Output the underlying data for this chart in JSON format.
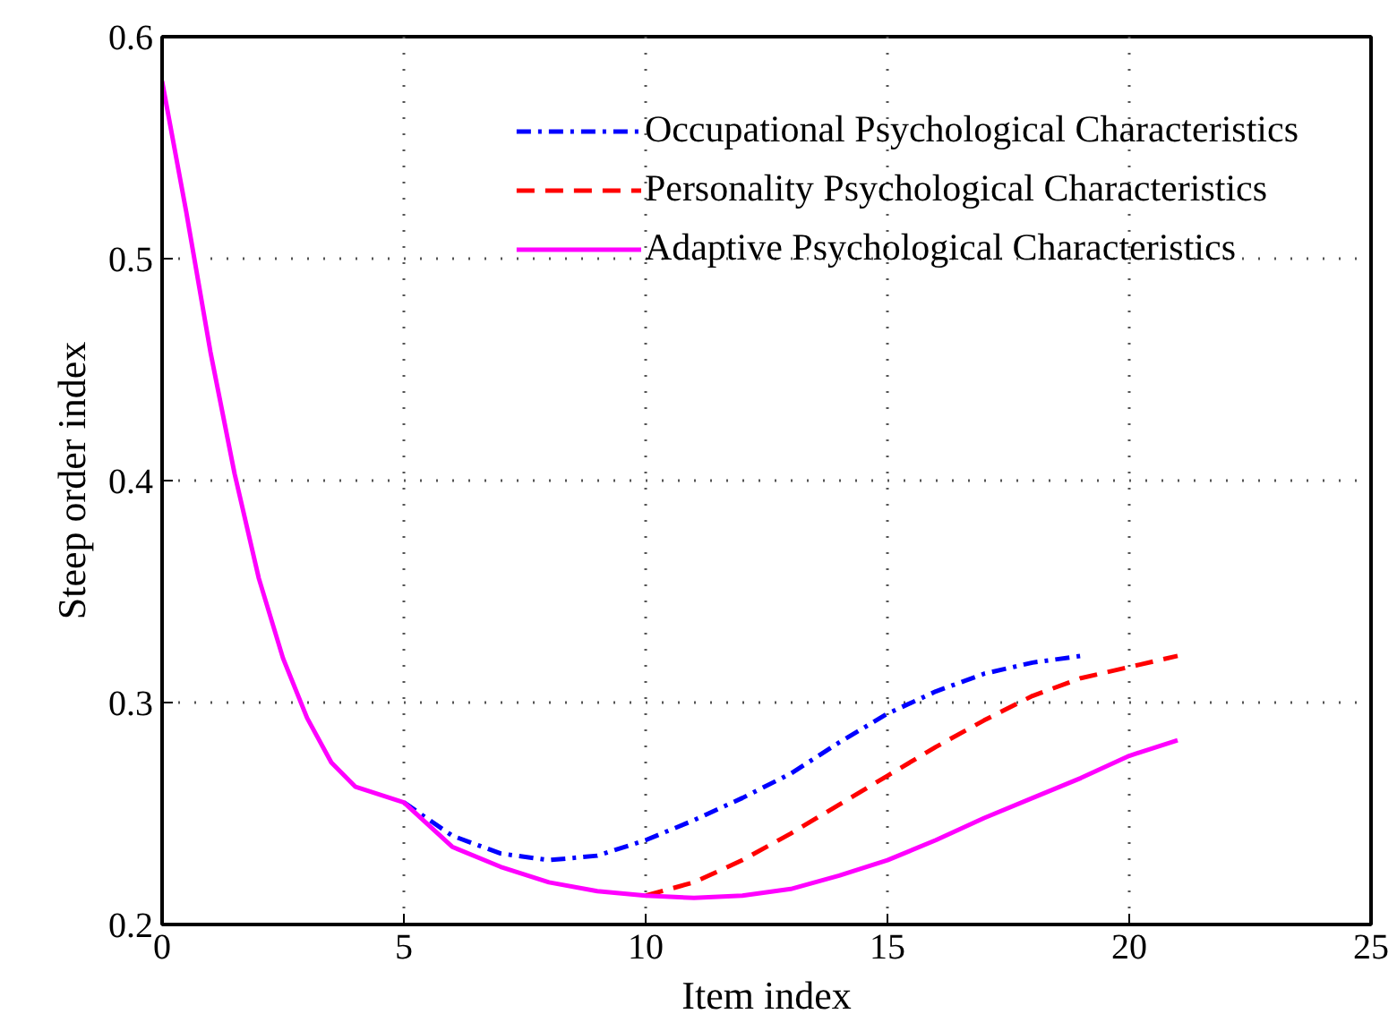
{
  "chart_data": {
    "type": "line",
    "xlabel": "Item index",
    "ylabel": "Steep order index",
    "xlim": [
      0,
      25
    ],
    "ylim": [
      0.2,
      0.6
    ],
    "xticks": [
      0,
      5,
      10,
      15,
      20,
      25
    ],
    "yticks": [
      0.2,
      0.3,
      0.4,
      0.5,
      0.6
    ],
    "grid": true,
    "legend": "top right",
    "series": [
      {
        "name": "Occupational Psychological Characteristics",
        "color": "#0000ff",
        "line_style": "dashdot",
        "x": [
          5,
          6,
          7,
          8,
          9,
          10,
          11,
          12,
          13,
          14,
          15,
          16,
          17,
          18,
          19
        ],
        "values": [
          0.255,
          0.24,
          0.232,
          0.229,
          0.231,
          0.238,
          0.247,
          0.257,
          0.268,
          0.282,
          0.295,
          0.305,
          0.313,
          0.318,
          0.321
        ]
      },
      {
        "name": "Personality Psychological Characteristics",
        "color": "#ff0000",
        "line_style": "dashed",
        "x": [
          10,
          11,
          12,
          13,
          14,
          15,
          16,
          17,
          18,
          19,
          20,
          21
        ],
        "values": [
          0.213,
          0.219,
          0.229,
          0.241,
          0.254,
          0.267,
          0.28,
          0.292,
          0.303,
          0.311,
          0.316,
          0.321
        ]
      },
      {
        "name": "Adaptive Psychological Characteristics",
        "color": "#ff00ff",
        "line_style": "solid",
        "x": [
          0,
          0.5,
          1,
          1.5,
          2,
          2.5,
          3,
          3.5,
          4,
          5,
          6,
          7,
          8,
          9,
          10,
          11,
          12,
          13,
          14,
          15,
          16,
          17,
          18,
          19,
          20,
          21
        ],
        "values": [
          0.58,
          0.521,
          0.458,
          0.403,
          0.356,
          0.32,
          0.293,
          0.273,
          0.262,
          0.255,
          0.235,
          0.226,
          0.219,
          0.215,
          0.213,
          0.212,
          0.213,
          0.216,
          0.222,
          0.229,
          0.238,
          0.248,
          0.257,
          0.266,
          0.276,
          0.283
        ]
      }
    ]
  }
}
